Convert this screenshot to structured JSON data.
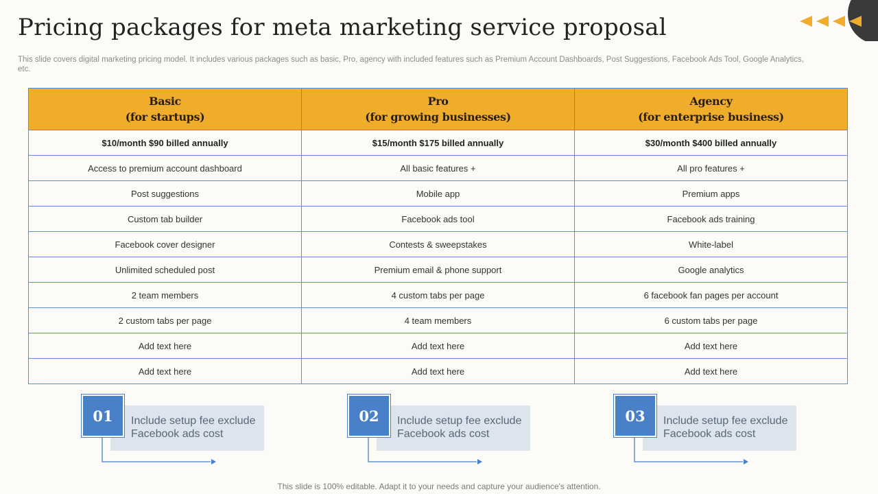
{
  "title": "Pricing packages for meta marketing service proposal",
  "subtitle": "This slide covers digital marketing pricing model. It includes various packages such as basic, Pro, agency with included features such as Premium Account Dashboards, Post Suggestions, Facebook Ads Tool, Google Analytics,  etc.",
  "table": {
    "headers": [
      {
        "name": "Basic",
        "sub": "(for startups)"
      },
      {
        "name": "Pro",
        "sub": "(for growing businesses)"
      },
      {
        "name": "Agency",
        "sub": "(for enterprise business)"
      }
    ],
    "prices": [
      "$10/month $90 billed annually",
      "$15/month $175 billed annually",
      "$30/month $400 billed annually"
    ],
    "rows": [
      [
        "Access to premium  account dashboard",
        "All basic features  +",
        "All pro features  +"
      ],
      [
        "Post suggestions",
        "Mobile app",
        "Premium apps"
      ],
      [
        "Custom tab builder",
        "Facebook ads tool",
        "Facebook ads training"
      ],
      [
        "Facebook cover designer",
        "Contests & sweepstakes",
        "White-label"
      ],
      [
        "Unlimited scheduled post",
        "Premium email & phone support",
        "Google analytics"
      ],
      [
        "2 team members",
        "4 custom tabs per page",
        "6 facebook fan pages per account"
      ],
      [
        "2 custom tabs per page",
        "4 team members",
        "6 custom tabs per page"
      ],
      [
        "Add text here",
        "Add text here",
        "Add text here"
      ],
      [
        "Add text here",
        "Add text here",
        "Add text here"
      ]
    ]
  },
  "notes": [
    {
      "number": "01",
      "text": "Include  setup fee exclude Facebook ads cost"
    },
    {
      "number": "02",
      "text": "Include  setup fee exclude Facebook ads cost"
    },
    {
      "number": "03",
      "text": "Include  setup fee exclude Facebook ads cost"
    }
  ],
  "footer": "This slide is 100% editable. Adapt it to your needs and capture your audience's attention.",
  "colors": {
    "accent": "#f0ac2b",
    "blue": "#4a80c8",
    "border": "#5b8fd0",
    "note_bg": "#dce4ee"
  },
  "icons": {
    "corner": "triangle-left-arrows-icon"
  }
}
